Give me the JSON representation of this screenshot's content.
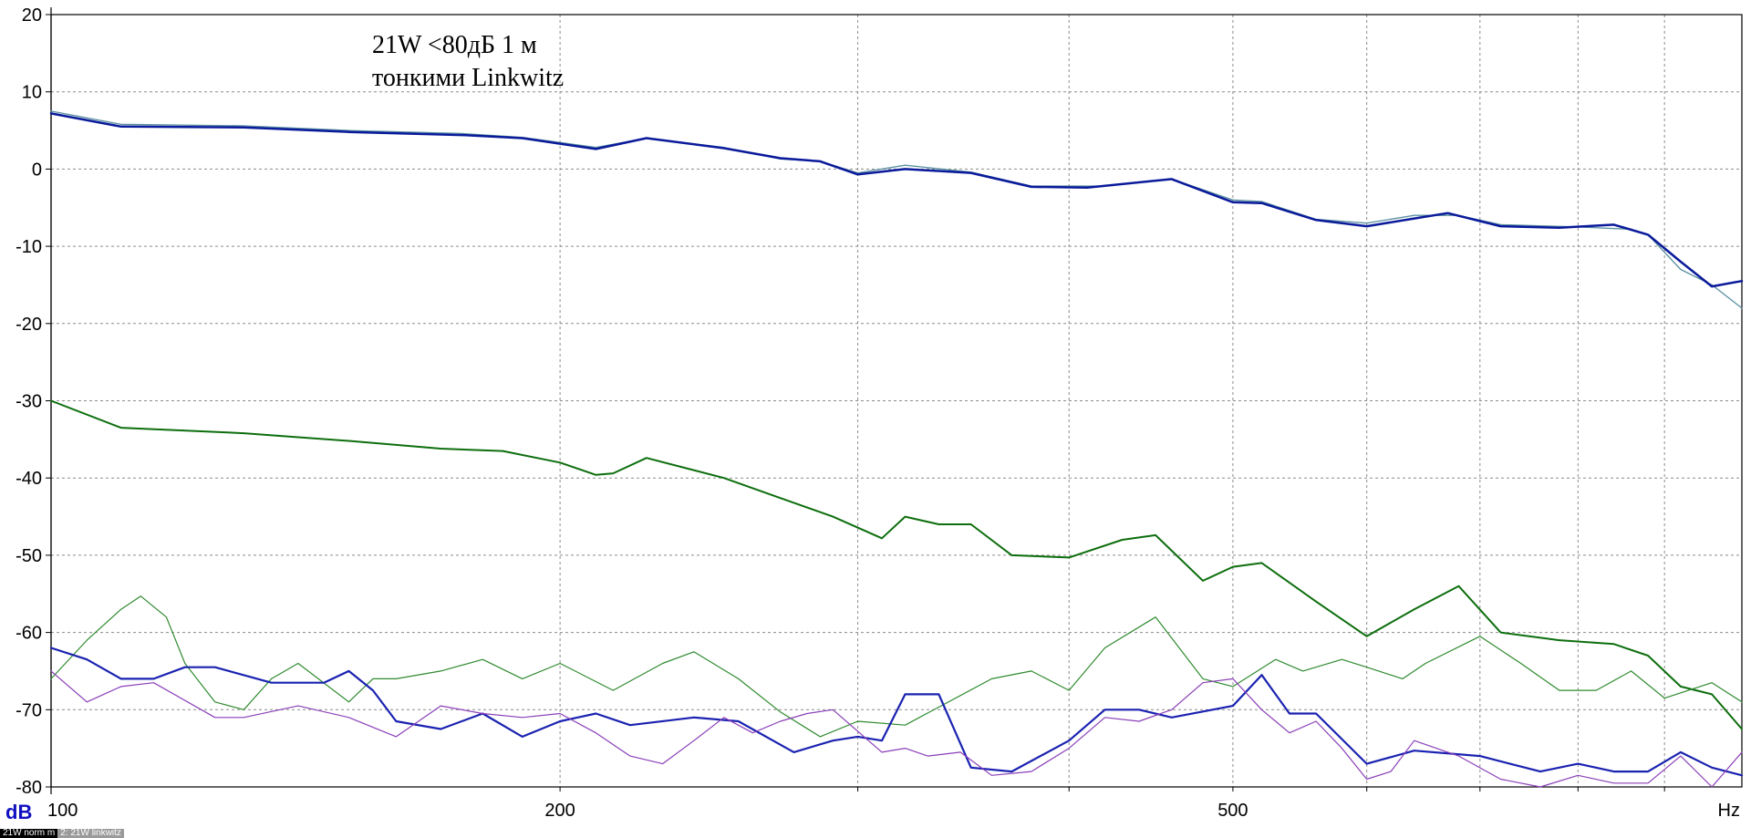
{
  "chart_data": {
    "type": "line",
    "x_scale": "log",
    "xlim": [
      100,
      1000
    ],
    "ylim": [
      -80,
      20
    ],
    "grid": true,
    "x_ticks": [
      {
        "value": 100,
        "label": "100"
      },
      {
        "value": 200,
        "label": "200"
      },
      {
        "value": 500,
        "label": "500"
      },
      {
        "value": 1000,
        "label": "Hz"
      }
    ],
    "x_minor": [
      300,
      400,
      600,
      700,
      800,
      900
    ],
    "y_ticks": [
      20,
      10,
      0,
      -10,
      -20,
      -30,
      -40,
      -50,
      -60,
      -70,
      -80
    ],
    "ylabel": "dB",
    "xlabel": "Hz",
    "annotation": [
      "21W <80дБ 1 м",
      "тонкими Linkwitz"
    ],
    "series": [
      {
        "color": "#5a8fa0",
        "width": 1.3,
        "points": [
          [
            100,
            7.5
          ],
          [
            110,
            5.8
          ],
          [
            130,
            5.6
          ],
          [
            150,
            5
          ],
          [
            175,
            4.6
          ],
          [
            190,
            4.1
          ],
          [
            210,
            2.8
          ],
          [
            225,
            4
          ],
          [
            250,
            2.8
          ],
          [
            270,
            1.3
          ],
          [
            285,
            1
          ],
          [
            300,
            -0.5
          ],
          [
            320,
            0.5
          ],
          [
            350,
            -0.4
          ],
          [
            380,
            -2.2
          ],
          [
            420,
            -2.2
          ],
          [
            460,
            -1.3
          ],
          [
            500,
            -4
          ],
          [
            520,
            -4.2
          ],
          [
            560,
            -6.5
          ],
          [
            600,
            -7
          ],
          [
            640,
            -6
          ],
          [
            680,
            -6
          ],
          [
            720,
            -7.2
          ],
          [
            800,
            -7.5
          ],
          [
            860,
            -7.8
          ],
          [
            880,
            -8.5
          ],
          [
            920,
            -13
          ],
          [
            960,
            -15
          ],
          [
            1000,
            -18
          ]
        ]
      },
      {
        "color": "#0a1a9a",
        "width": 2.5,
        "points": [
          [
            100,
            7.2
          ],
          [
            110,
            5.5
          ],
          [
            130,
            5.4
          ],
          [
            150,
            4.8
          ],
          [
            175,
            4.4
          ],
          [
            190,
            4
          ],
          [
            210,
            2.6
          ],
          [
            225,
            4
          ],
          [
            250,
            2.7
          ],
          [
            270,
            1.4
          ],
          [
            285,
            1
          ],
          [
            300,
            -0.7
          ],
          [
            320,
            0
          ],
          [
            350,
            -0.5
          ],
          [
            380,
            -2.3
          ],
          [
            410,
            -2.4
          ],
          [
            460,
            -1.3
          ],
          [
            500,
            -4.3
          ],
          [
            520,
            -4.4
          ],
          [
            560,
            -6.6
          ],
          [
            600,
            -7.4
          ],
          [
            640,
            -6.4
          ],
          [
            670,
            -5.7
          ],
          [
            720,
            -7.4
          ],
          [
            780,
            -7.6
          ],
          [
            840,
            -7.2
          ],
          [
            880,
            -8.5
          ],
          [
            920,
            -12
          ],
          [
            960,
            -15.2
          ],
          [
            1000,
            -14.5
          ]
        ]
      },
      {
        "color": "#0d6e0d",
        "width": 2,
        "points": [
          [
            100,
            -30
          ],
          [
            110,
            -33.5
          ],
          [
            130,
            -34.2
          ],
          [
            150,
            -35.2
          ],
          [
            170,
            -36.2
          ],
          [
            185,
            -36.5
          ],
          [
            200,
            -38
          ],
          [
            210,
            -39.6
          ],
          [
            215,
            -39.4
          ],
          [
            225,
            -37.4
          ],
          [
            250,
            -40
          ],
          [
            270,
            -42.6
          ],
          [
            290,
            -45
          ],
          [
            310,
            -47.8
          ],
          [
            320,
            -45
          ],
          [
            335,
            -46
          ],
          [
            350,
            -46
          ],
          [
            370,
            -50
          ],
          [
            400,
            -50.3
          ],
          [
            430,
            -48
          ],
          [
            450,
            -47.4
          ],
          [
            480,
            -53.3
          ],
          [
            500,
            -51.5
          ],
          [
            520,
            -51
          ],
          [
            560,
            -56
          ],
          [
            600,
            -60.5
          ],
          [
            640,
            -57
          ],
          [
            680,
            -54
          ],
          [
            720,
            -60
          ],
          [
            780,
            -61
          ],
          [
            840,
            -61.5
          ],
          [
            880,
            -63
          ],
          [
            920,
            -67
          ],
          [
            960,
            -68
          ],
          [
            1000,
            -72.5
          ]
        ]
      },
      {
        "color": "#2f8a2f",
        "width": 1.2,
        "points": [
          [
            100,
            -66
          ],
          [
            105,
            -61
          ],
          [
            110,
            -57
          ],
          [
            113,
            -55.3
          ],
          [
            117,
            -58
          ],
          [
            120,
            -64
          ],
          [
            125,
            -69
          ],
          [
            130,
            -70
          ],
          [
            135,
            -66
          ],
          [
            140,
            -64
          ],
          [
            150,
            -69
          ],
          [
            155,
            -66
          ],
          [
            160,
            -66
          ],
          [
            170,
            -65
          ],
          [
            180,
            -63.5
          ],
          [
            190,
            -66
          ],
          [
            200,
            -64
          ],
          [
            215,
            -67.5
          ],
          [
            230,
            -64
          ],
          [
            240,
            -62.5
          ],
          [
            255,
            -66
          ],
          [
            270,
            -70.3
          ],
          [
            285,
            -73.5
          ],
          [
            300,
            -71.5
          ],
          [
            320,
            -72
          ],
          [
            360,
            -66
          ],
          [
            380,
            -65
          ],
          [
            400,
            -67.5
          ],
          [
            420,
            -62
          ],
          [
            450,
            -58
          ],
          [
            480,
            -66
          ],
          [
            500,
            -67
          ],
          [
            530,
            -63.5
          ],
          [
            550,
            -65
          ],
          [
            580,
            -63.5
          ],
          [
            600,
            -64.5
          ],
          [
            630,
            -66
          ],
          [
            650,
            -64
          ],
          [
            700,
            -60.5
          ],
          [
            740,
            -64
          ],
          [
            780,
            -67.5
          ],
          [
            820,
            -67.5
          ],
          [
            860,
            -65
          ],
          [
            900,
            -68.5
          ],
          [
            960,
            -66.5
          ],
          [
            1000,
            -69
          ]
        ]
      },
      {
        "color": "#1a22b0",
        "width": 2.2,
        "points": [
          [
            100,
            -62
          ],
          [
            105,
            -63.5
          ],
          [
            110,
            -66
          ],
          [
            115,
            -66
          ],
          [
            120,
            -64.5
          ],
          [
            125,
            -64.5
          ],
          [
            135,
            -66.5
          ],
          [
            145,
            -66.5
          ],
          [
            150,
            -65
          ],
          [
            155,
            -67.5
          ],
          [
            160,
            -71.5
          ],
          [
            170,
            -72.5
          ],
          [
            180,
            -70.5
          ],
          [
            190,
            -73.5
          ],
          [
            200,
            -71.5
          ],
          [
            210,
            -70.5
          ],
          [
            220,
            -72
          ],
          [
            240,
            -71
          ],
          [
            255,
            -71.5
          ],
          [
            275,
            -75.5
          ],
          [
            290,
            -74
          ],
          [
            300,
            -73.5
          ],
          [
            310,
            -74
          ],
          [
            320,
            -68
          ],
          [
            335,
            -68
          ],
          [
            350,
            -77.5
          ],
          [
            370,
            -78
          ],
          [
            400,
            -74
          ],
          [
            420,
            -70
          ],
          [
            440,
            -70
          ],
          [
            460,
            -71
          ],
          [
            500,
            -69.5
          ],
          [
            520,
            -65.5
          ],
          [
            540,
            -70.5
          ],
          [
            560,
            -70.5
          ],
          [
            600,
            -77
          ],
          [
            640,
            -75.3
          ],
          [
            700,
            -76
          ],
          [
            760,
            -78
          ],
          [
            800,
            -77
          ],
          [
            840,
            -78
          ],
          [
            880,
            -78
          ],
          [
            920,
            -75.5
          ],
          [
            960,
            -77.5
          ],
          [
            1000,
            -78.5
          ]
        ]
      },
      {
        "color": "#8a3fb8",
        "width": 1.2,
        "points": [
          [
            100,
            -65
          ],
          [
            105,
            -69
          ],
          [
            110,
            -67
          ],
          [
            115,
            -66.5
          ],
          [
            125,
            -71
          ],
          [
            130,
            -71
          ],
          [
            140,
            -69.5
          ],
          [
            150,
            -71
          ],
          [
            160,
            -73.5
          ],
          [
            170,
            -69.5
          ],
          [
            180,
            -70.5
          ],
          [
            190,
            -71
          ],
          [
            200,
            -70.5
          ],
          [
            210,
            -73
          ],
          [
            220,
            -76
          ],
          [
            230,
            -77
          ],
          [
            240,
            -74
          ],
          [
            250,
            -71
          ],
          [
            260,
            -73
          ],
          [
            270,
            -71.5
          ],
          [
            280,
            -70.5
          ],
          [
            290,
            -70
          ],
          [
            310,
            -75.5
          ],
          [
            320,
            -75
          ],
          [
            330,
            -76
          ],
          [
            345,
            -75.5
          ],
          [
            360,
            -78.5
          ],
          [
            380,
            -78
          ],
          [
            400,
            -75
          ],
          [
            420,
            -71
          ],
          [
            440,
            -71.5
          ],
          [
            460,
            -70
          ],
          [
            480,
            -66.5
          ],
          [
            500,
            -66
          ],
          [
            520,
            -70
          ],
          [
            540,
            -73
          ],
          [
            560,
            -71.5
          ],
          [
            580,
            -75
          ],
          [
            600,
            -79
          ],
          [
            620,
            -78
          ],
          [
            640,
            -74
          ],
          [
            680,
            -76
          ],
          [
            720,
            -79
          ],
          [
            760,
            -80
          ],
          [
            800,
            -78.5
          ],
          [
            840,
            -79.5
          ],
          [
            880,
            -79.5
          ],
          [
            920,
            -76
          ],
          [
            960,
            -80
          ],
          [
            1000,
            -75.5
          ]
        ]
      }
    ]
  },
  "tabs": [
    {
      "label": "21W norm m"
    },
    {
      "label": "2: 21W linkwitz"
    }
  ]
}
